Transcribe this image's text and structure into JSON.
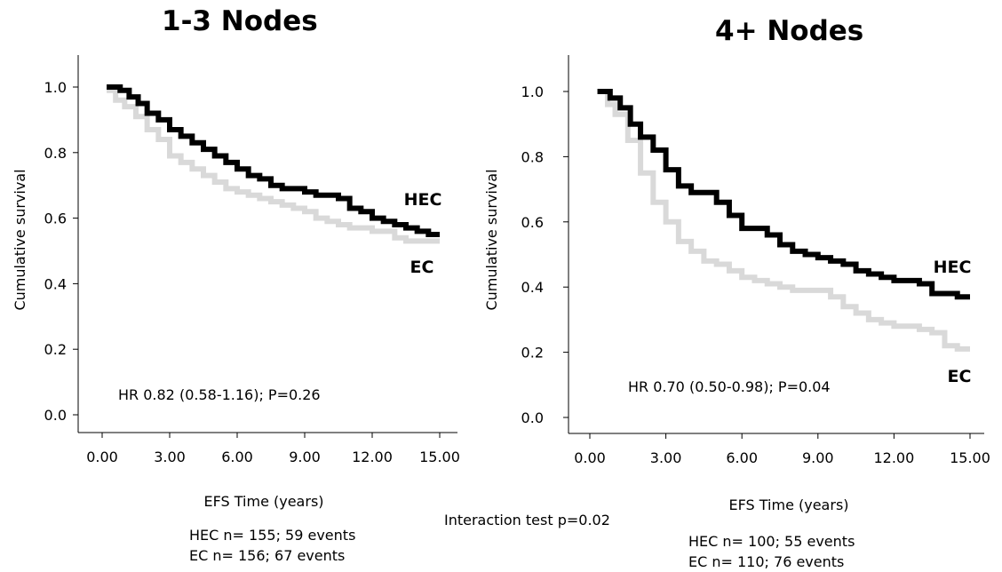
{
  "footer_note": "Interaction test p=0.02",
  "chart_data": [
    {
      "type": "line",
      "title": "1-3 Nodes",
      "xlabel": "EFS Time (years)",
      "ylabel": "Cumulative survival",
      "xlim": [
        0,
        15
      ],
      "ylim": [
        0,
        1.05
      ],
      "x_ticks": [
        "0.00",
        "3.00",
        "6.00",
        "9.00",
        "12.00",
        "15.00"
      ],
      "y_ticks": [
        "0.0",
        "0.2",
        "0.4",
        "0.6",
        "0.8",
        "1.0"
      ],
      "annotation": "HR 0.82 (0.58-1.16); P=0.26",
      "counts": [
        "HEC n= 155; 59 events",
        "EC n= 156; 67 events"
      ],
      "series": [
        {
          "name": "HEC",
          "color": "#000000",
          "x": [
            0.2,
            0.8,
            1.2,
            1.6,
            2.0,
            2.5,
            3.0,
            3.5,
            4.0,
            4.5,
            5.0,
            5.5,
            6.0,
            6.5,
            7.0,
            7.5,
            8.0,
            8.5,
            9.0,
            9.5,
            10.0,
            10.5,
            11.0,
            11.5,
            12.0,
            12.5,
            13.0,
            13.5,
            14.0,
            14.5,
            15.0
          ],
          "y": [
            1.0,
            0.99,
            0.97,
            0.95,
            0.92,
            0.9,
            0.87,
            0.85,
            0.83,
            0.81,
            0.79,
            0.77,
            0.75,
            0.73,
            0.72,
            0.7,
            0.69,
            0.69,
            0.68,
            0.67,
            0.67,
            0.66,
            0.63,
            0.62,
            0.6,
            0.59,
            0.58,
            0.57,
            0.56,
            0.55,
            0.55
          ]
        },
        {
          "name": "EC",
          "color": "#d9d9d9",
          "x": [
            0.2,
            0.6,
            1.0,
            1.5,
            2.0,
            2.5,
            3.0,
            3.5,
            4.0,
            4.5,
            5.0,
            5.5,
            6.0,
            6.5,
            7.0,
            7.5,
            8.0,
            8.5,
            9.0,
            9.5,
            10.0,
            10.5,
            11.0,
            11.5,
            12.0,
            12.5,
            13.0,
            13.5,
            14.0,
            14.5,
            15.0
          ],
          "y": [
            0.99,
            0.96,
            0.94,
            0.91,
            0.87,
            0.84,
            0.79,
            0.77,
            0.75,
            0.73,
            0.71,
            0.69,
            0.68,
            0.67,
            0.66,
            0.65,
            0.64,
            0.63,
            0.62,
            0.6,
            0.59,
            0.58,
            0.57,
            0.57,
            0.56,
            0.56,
            0.54,
            0.53,
            0.53,
            0.53,
            0.53
          ]
        }
      ]
    },
    {
      "type": "line",
      "title": "4+ Nodes",
      "xlabel": "EFS Time (years)",
      "ylabel": "Cumulative survival",
      "xlim": [
        0,
        15
      ],
      "ylim": [
        0,
        1.05
      ],
      "x_ticks": [
        "0.00",
        "3.00",
        "6.00",
        "9.00",
        "12.00",
        "15.00"
      ],
      "y_ticks": [
        "0.0",
        "0.2",
        "0.4",
        "0.6",
        "0.8",
        "1.0"
      ],
      "annotation": "HR 0.70 (0.50-0.98); P=0.04",
      "counts": [
        "HEC n= 100; 55 events",
        "EC n= 110; 76 events"
      ],
      "series": [
        {
          "name": "HEC",
          "color": "#000000",
          "x": [
            0.3,
            0.8,
            1.2,
            1.6,
            2.0,
            2.5,
            3.0,
            3.5,
            4.0,
            4.5,
            5.0,
            5.5,
            6.0,
            6.5,
            7.0,
            7.5,
            8.0,
            8.5,
            9.0,
            9.5,
            10.0,
            10.5,
            11.0,
            11.5,
            12.0,
            12.5,
            13.0,
            13.5,
            14.0,
            14.5,
            15.0
          ],
          "y": [
            1.0,
            0.98,
            0.95,
            0.9,
            0.86,
            0.82,
            0.76,
            0.71,
            0.69,
            0.69,
            0.66,
            0.62,
            0.58,
            0.58,
            0.56,
            0.53,
            0.51,
            0.5,
            0.49,
            0.48,
            0.47,
            0.45,
            0.44,
            0.43,
            0.42,
            0.42,
            0.41,
            0.38,
            0.38,
            0.37,
            0.37
          ]
        },
        {
          "name": "EC",
          "color": "#d9d9d9",
          "x": [
            0.3,
            0.7,
            1.0,
            1.5,
            2.0,
            2.5,
            3.0,
            3.5,
            4.0,
            4.5,
            5.0,
            5.5,
            6.0,
            6.5,
            7.0,
            7.5,
            8.0,
            8.5,
            9.0,
            9.5,
            10.0,
            10.5,
            11.0,
            11.5,
            12.0,
            12.5,
            13.0,
            13.5,
            14.0,
            14.5,
            15.0
          ],
          "y": [
            1.0,
            0.96,
            0.93,
            0.85,
            0.75,
            0.66,
            0.6,
            0.54,
            0.51,
            0.48,
            0.47,
            0.45,
            0.43,
            0.42,
            0.41,
            0.4,
            0.39,
            0.39,
            0.39,
            0.37,
            0.34,
            0.32,
            0.3,
            0.29,
            0.28,
            0.28,
            0.27,
            0.26,
            0.22,
            0.21,
            0.21
          ]
        }
      ]
    }
  ]
}
